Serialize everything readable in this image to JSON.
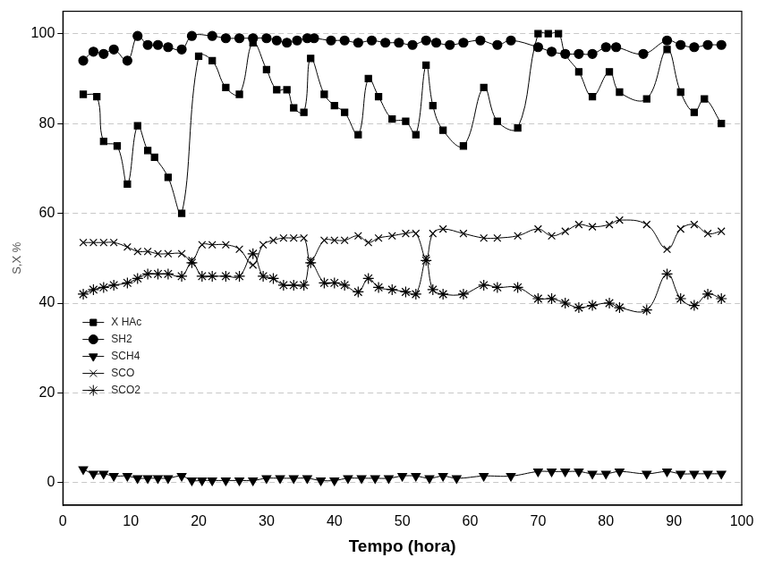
{
  "chart_data": {
    "type": "line",
    "x_label": "Tempo (hora)",
    "y_label": "S,X %",
    "xlim": [
      0,
      100
    ],
    "xticks": [
      0,
      10,
      20,
      30,
      40,
      50,
      60,
      70,
      80,
      90,
      100
    ],
    "ylim": [
      -5,
      105
    ],
    "yticks": [
      0,
      20,
      40,
      60,
      80,
      100
    ],
    "grid": true,
    "legend": "lower left",
    "series": [
      {
        "name": "X HAc",
        "color": "#000000",
        "marker": "square",
        "line_style": "solid",
        "x": [
          3,
          5,
          6,
          8,
          9.5,
          11,
          12.5,
          13.5,
          15.5,
          17.5,
          20,
          22,
          24,
          26,
          28,
          30,
          31.5,
          33,
          34,
          35.5,
          36.5,
          38.5,
          40,
          41.5,
          43.5,
          45,
          46.5,
          48.5,
          50.5,
          52,
          53.5,
          54.5,
          56,
          59,
          62,
          64,
          67,
          70,
          71.5,
          73,
          74,
          76,
          78,
          80.5,
          82,
          86,
          89,
          91,
          93,
          94.5,
          97
        ],
        "values": [
          86.5,
          86,
          76,
          75,
          66.5,
          79.5,
          74,
          72.5,
          68,
          60,
          95,
          94,
          88,
          86.5,
          98,
          92,
          87.5,
          87.5,
          83.5,
          82.5,
          94.5,
          86.5,
          84,
          82.5,
          77.5,
          90,
          86,
          81,
          80.5,
          77.5,
          93,
          84,
          78.5,
          75,
          88,
          80.5,
          79,
          100,
          100,
          100,
          95.5,
          91.5,
          86,
          91.5,
          87,
          85.5,
          96.5,
          87,
          82.5,
          85.5,
          80
        ]
      },
      {
        "name": "SH2",
        "color": "#000000",
        "marker": "circle",
        "line_style": "solid",
        "x": [
          3,
          4.5,
          6,
          7.5,
          9.5,
          11,
          12.5,
          14,
          15.5,
          17.5,
          19,
          22,
          24,
          26,
          28,
          30,
          31.5,
          33,
          34.5,
          36,
          37,
          39.5,
          41.5,
          43.5,
          45.5,
          47.5,
          49.5,
          51.5,
          53.5,
          55,
          57,
          59,
          61.5,
          64,
          66,
          70,
          72,
          74,
          76,
          78,
          80,
          81.5,
          85.5,
          89,
          91,
          93,
          95,
          97
        ],
        "values": [
          94,
          96,
          95.5,
          96.5,
          94,
          99.5,
          97.5,
          97.5,
          97,
          96.5,
          99.5,
          99.5,
          99,
          99,
          99,
          99,
          98.5,
          98,
          98.5,
          99,
          99,
          98.5,
          98.5,
          98,
          98.5,
          98,
          98,
          97.5,
          98.5,
          98,
          97.5,
          98,
          98.5,
          97.5,
          98.5,
          97,
          96,
          95.5,
          95.5,
          95.5,
          97,
          97,
          95.5,
          98.5,
          97.5,
          97,
          97.5,
          97.5
        ]
      },
      {
        "name": "SCH4",
        "color": "#000000",
        "marker": "triangle_down",
        "line_style": "solid",
        "x": [
          3,
          4.5,
          6,
          7.5,
          9.5,
          11,
          12.5,
          14,
          15.5,
          17.5,
          19,
          20.5,
          22,
          24,
          26,
          28,
          30,
          32,
          34,
          36,
          38,
          40,
          42,
          44,
          46,
          48,
          50,
          52,
          54,
          56,
          58,
          62,
          66,
          70,
          72,
          74,
          76,
          78,
          80,
          82,
          86,
          89,
          91,
          93,
          95,
          97
        ],
        "values": [
          3,
          2,
          2,
          1.5,
          1.5,
          1,
          1,
          1,
          1,
          1.5,
          0.5,
          0.5,
          0.5,
          0.5,
          0.5,
          0.5,
          1,
          1,
          1,
          1,
          0.5,
          0.5,
          1,
          1,
          1,
          1,
          1.5,
          1.5,
          1,
          1.5,
          1,
          1.5,
          1.5,
          2.5,
          2.5,
          2.5,
          2.5,
          2,
          2,
          2.5,
          2,
          2.5,
          2,
          2,
          2,
          2
        ]
      },
      {
        "name": "SCO",
        "color": "#000000",
        "marker": "x",
        "line_style": "solid",
        "x": [
          3,
          4.5,
          6,
          7.5,
          9.5,
          11,
          12.5,
          14,
          15.5,
          17.5,
          19,
          20.5,
          22,
          24,
          26,
          28,
          29.5,
          31,
          32.5,
          34,
          35.5,
          36.5,
          38.5,
          40,
          41.5,
          43.5,
          45,
          46.5,
          48.5,
          50.5,
          52,
          53.5,
          54.5,
          56,
          59,
          62,
          64,
          67,
          70,
          72,
          74,
          76,
          78,
          80.5,
          82,
          86,
          89,
          91,
          93,
          95,
          97
        ],
        "values": [
          53.5,
          53.5,
          53.5,
          53.5,
          52.5,
          51.5,
          51.5,
          51,
          51,
          51,
          49.5,
          53,
          53,
          53,
          52,
          48.5,
          53,
          54,
          54.5,
          54.5,
          54.5,
          49.5,
          54,
          54,
          54,
          55,
          53.5,
          54.5,
          55,
          55.5,
          55.5,
          50,
          55.5,
          56.5,
          55.5,
          54.5,
          54.5,
          55,
          56.5,
          55,
          56,
          57.5,
          57,
          57.5,
          58.5,
          57.5,
          52,
          56.5,
          57.5,
          55.5,
          56
        ]
      },
      {
        "name": "SCO2",
        "color": "#000000",
        "marker": "star",
        "line_style": "solid",
        "x": [
          3,
          4.5,
          6,
          7.5,
          9.5,
          11,
          12.5,
          14,
          15.5,
          17.5,
          19,
          20.5,
          22,
          24,
          26,
          28,
          29.5,
          31,
          32.5,
          34,
          35.5,
          36.5,
          38.5,
          40,
          41.5,
          43.5,
          45,
          46.5,
          48.5,
          50.5,
          52,
          53.5,
          54.5,
          56,
          59,
          62,
          64,
          67,
          70,
          72,
          74,
          76,
          78,
          80.5,
          82,
          86,
          89,
          91,
          93,
          95,
          97
        ],
        "values": [
          42,
          43,
          43.5,
          44,
          44.5,
          45.5,
          46.5,
          46.5,
          46.5,
          46,
          49,
          46,
          46,
          46,
          46,
          51,
          46,
          45.5,
          44,
          44,
          44,
          49,
          44.5,
          44.5,
          44,
          42.5,
          45.5,
          43.5,
          43,
          42.5,
          42,
          49.5,
          43,
          42,
          42,
          44,
          43.5,
          43.5,
          41,
          41,
          40,
          39,
          39.5,
          40,
          39,
          38.5,
          46.5,
          41,
          39.5,
          42,
          41
        ]
      }
    ]
  }
}
